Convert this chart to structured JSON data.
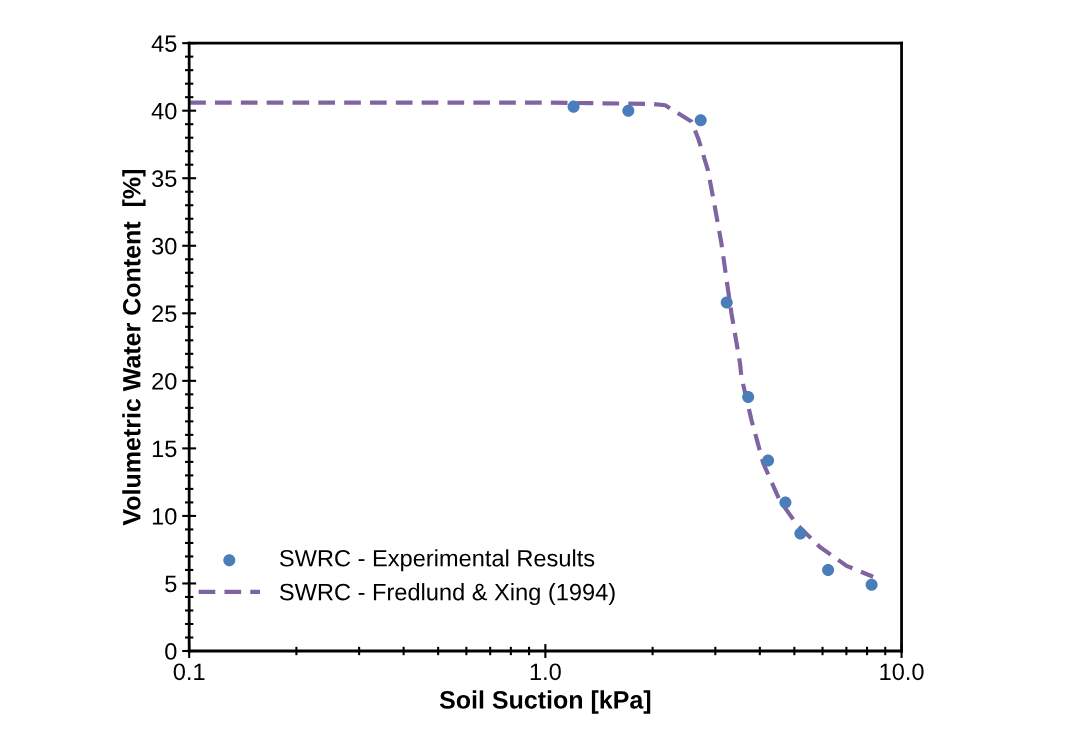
{
  "chart_data": {
    "type": "scatter",
    "xlabel": "Soil Suction [kPa]",
    "ylabel": "Volumetric Water Content  [%]",
    "log": "x",
    "xlim": [
      0.1,
      10
    ],
    "xticks": [
      {
        "value": 0.1,
        "label": "0.1"
      },
      {
        "value": 1,
        "label": "1.0"
      },
      {
        "value": 10,
        "label": "10.0"
      }
    ],
    "ylim": [
      0,
      45
    ],
    "yticks": [
      0,
      5,
      10,
      15,
      20,
      25,
      30,
      35,
      40,
      45
    ],
    "grid": false,
    "legend": "bottom left",
    "series": [
      {
        "name": "SWRC - Experimental Results",
        "marker": "circle",
        "color": "#4a7ebb",
        "x": [
          1.2,
          1.71,
          2.73,
          3.23,
          3.71,
          4.22,
          4.72,
          5.2,
          6.22,
          8.24
        ],
        "values": [
          40.3,
          40.0,
          39.3,
          25.8,
          18.8,
          14.1,
          11.0,
          8.7,
          6.0,
          4.9
        ]
      },
      {
        "name": "SWRC - Fredlund & Xing (1994)",
        "type": "line",
        "line_style": "dashed",
        "color": "#8064a2",
        "x": [
          0.1,
          1.0,
          2.0,
          2.17,
          2.57,
          2.69,
          2.86,
          2.99,
          3.12,
          3.23,
          3.33,
          3.52,
          3.55,
          3.79,
          4.09,
          4.55,
          5.07,
          5.9,
          7.01,
          8.32
        ],
        "values": [
          40.6,
          40.6,
          40.5,
          40.4,
          39.2,
          37.9,
          35.6,
          32.9,
          30.2,
          27.4,
          25.0,
          21.3,
          20.3,
          17.1,
          13.9,
          11.15,
          9.4,
          7.7,
          6.3,
          5.5
        ]
      }
    ]
  }
}
